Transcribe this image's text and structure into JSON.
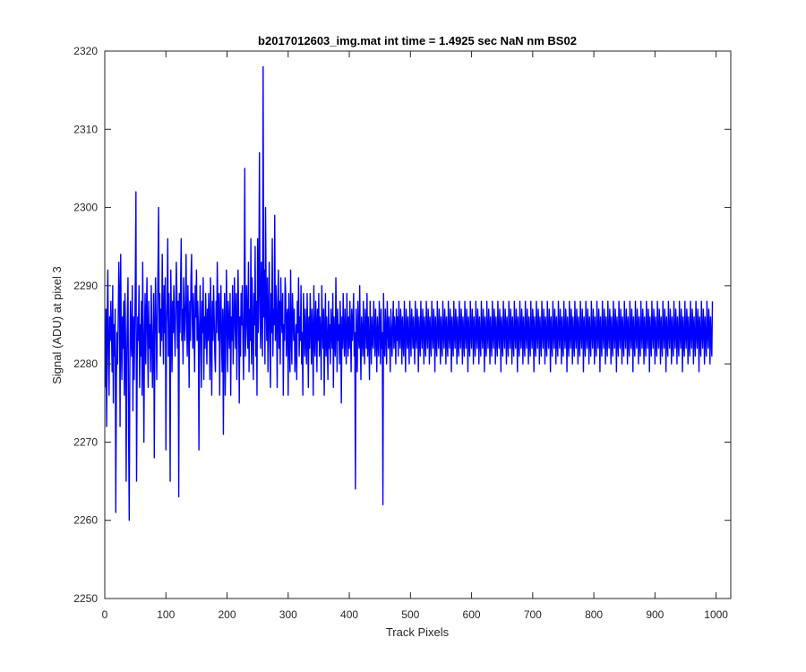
{
  "chart_data": {
    "type": "line",
    "title": "b2017012603_img.mat int time = 1.4925 sec  NaN nm BS02",
    "xlabel": "Track Pixels",
    "ylabel": "Signal (ADU) at pixel 3",
    "xlim": [
      0,
      1024
    ],
    "ylim": [
      2250,
      2320
    ],
    "xticks": [
      0,
      100,
      200,
      300,
      400,
      500,
      600,
      700,
      800,
      900,
      1000
    ],
    "yticks": [
      2250,
      2260,
      2270,
      2280,
      2290,
      2300,
      2310,
      2320
    ],
    "grid": false,
    "legend": "none",
    "series": [
      {
        "color": "#0000ff",
        "x_start": 1,
        "x_step": 1,
        "note_sampling": "every point shown, one value per track pixel 1..1024",
        "values": [
          2277,
          2287,
          2272,
          2285,
          2292,
          2281,
          2276,
          2286,
          2283,
          2288,
          2284,
          2279,
          2290,
          2275,
          2285,
          2281,
          2287,
          2261,
          2278,
          2284,
          2280,
          2286,
          2293,
          2289,
          2272,
          2294,
          2283,
          2278,
          2286,
          2282,
          2288,
          2276,
          2289,
          2284,
          2265,
          2280,
          2286,
          2291,
          2271,
          2260,
          2279,
          2288,
          2283,
          2281,
          2290,
          2274,
          2286,
          2278,
          2284,
          2291,
          2302,
          2265,
          2280,
          2286,
          2283,
          2290,
          2277,
          2285,
          2281,
          2288,
          2276,
          2293,
          2283,
          2270,
          2284,
          2289,
          2280,
          2286,
          2291,
          2283,
          2277,
          2288,
          2282,
          2285,
          2279,
          2290,
          2284,
          2277,
          2283,
          2289,
          2268,
          2284,
          2291,
          2285,
          2278,
          2286,
          2292,
          2300,
          2284,
          2289,
          2281,
          2287,
          2283,
          2294,
          2286,
          2280,
          2290,
          2284,
          2291,
          2269,
          2285,
          2288,
          2296,
          2281,
          2289,
          2283,
          2265,
          2292,
          2286,
          2279,
          2288,
          2284,
          2290,
          2285,
          2281,
          2287,
          2293,
          2289,
          2282,
          2288,
          2263,
          2289,
          2284,
          2290,
          2296,
          2283,
          2287,
          2280,
          2291,
          2286,
          2283,
          2288,
          2294,
          2285,
          2281,
          2290,
          2285,
          2277,
          2288,
          2283,
          2291,
          2294,
          2286,
          2282,
          2289,
          2284,
          2279,
          2290,
          2286,
          2292,
          2283,
          2288,
          2285,
          2269,
          2284,
          2290,
          2283,
          2277,
          2288,
          2284,
          2291,
          2278,
          2286,
          2282,
          2289,
          2285,
          2280,
          2287,
          2283,
          2289,
          2285,
          2278,
          2291,
          2284,
          2276,
          2288,
          2283,
          2290,
          2286,
          2281,
          2279,
          2288,
          2284,
          2293,
          2287,
          2283,
          2289,
          2276,
          2286,
          2290,
          2283,
          2279,
          2287,
          2271,
          2285,
          2289,
          2276,
          2283,
          2292,
          2285,
          2279,
          2288,
          2285,
          2282,
          2289,
          2276,
          2286,
          2283,
          2290,
          2280,
          2284,
          2291,
          2286,
          2282,
          2289,
          2278,
          2285,
          2292,
          2287,
          2275,
          2286,
          2281,
          2289,
          2285,
          2290,
          2283,
          2278,
          2287,
          2305,
          2281,
          2284,
          2290,
          2286,
          2282,
          2293,
          2279,
          2287,
          2283,
          2296,
          2280,
          2291,
          2284,
          2278,
          2289,
          2285,
          2295,
          2281,
          2288,
          2276,
          2296,
          2284,
          2290,
          2307,
          2286,
          2282,
          2293,
          2287,
          2281,
          2318,
          2286,
          2292,
          2280,
          2300,
          2288,
          2283,
          2291,
          2279,
          2286,
          2293,
          2283,
          2277,
          2289,
          2284,
          2296,
          2281,
          2287,
          2285,
          2299,
          2283,
          2290,
          2286,
          2277,
          2288,
          2292,
          2282,
          2288,
          2280,
          2291,
          2286,
          2284,
          2289,
          2276,
          2285,
          2283,
          2291,
          2289,
          2281,
          2286,
          2287,
          2276,
          2289,
          2283,
          2279,
          2292,
          2284,
          2280,
          2289,
          2286,
          2283,
          2287,
          2279,
          2282,
          2285,
          2278,
          2288,
          2284,
          2291,
          2281,
          2286,
          2283,
          2290,
          2280,
          2284,
          2276,
          2289,
          2285,
          2281,
          2287,
          2283,
          2280,
          2289,
          2284,
          2277,
          2286,
          2282,
          2289,
          2285,
          2280,
          2287,
          2284,
          2276,
          2290,
          2283,
          2281,
          2288,
          2285,
          2279,
          2287,
          2283,
          2289,
          2281,
          2286,
          2284,
          2278,
          2290,
          2285,
          2282,
          2287,
          2276,
          2284,
          2289,
          2281,
          2286,
          2283,
          2278,
          2288,
          2282,
          2285,
          2280,
          2287,
          2284,
          2282,
          2289,
          2277,
          2286,
          2283,
          2281,
          2291,
          2285,
          2279,
          2287,
          2283,
          2285,
          2280,
          2288,
          2284,
          2275,
          2286,
          2282,
          2289,
          2284,
          2281,
          2287,
          2283,
          2280,
          2289,
          2285,
          2281,
          2286,
          2282,
          2288,
          2284,
          2279,
          2287,
          2283,
          2285,
          2289,
          2281,
          2284,
          2264,
          2287,
          2283,
          2279,
          2288,
          2284,
          2282,
          2290,
          2283,
          2278,
          2286,
          2284,
          2281,
          2288,
          2283,
          2280,
          2287,
          2285,
          2282,
          2289,
          2281,
          2286,
          2283,
          2278,
          2288,
          2284,
          2280,
          2286,
          2283,
          2282,
          2288,
          2285,
          2281,
          2287,
          2284,
          2279,
          2286,
          2283,
          2281,
          2288,
          2285,
          2280,
          2287,
          2282,
          2284,
          2262,
          2289,
          2283,
          2281,
          2287,
          2284,
          2280,
          2288,
          2285,
          2282,
          2286,
          2283,
          2279,
          2287,
          2284,
          2281,
          2285,
          2288,
          2282,
          2286,
          2284,
          2280,
          2287,
          2283,
          2286,
          2281,
          2288,
          2284,
          2282,
          2287,
          2285,
          2280,
          2286,
          2283,
          2281,
          2288,
          2284,
          2279,
          2287,
          2285,
          2282,
          2286,
          2283,
          2280,
          2288,
          2284,
          2281,
          2287,
          2285,
          2282,
          2286,
          2283,
          2280,
          2288,
          2284,
          2282,
          2287,
          2285,
          2279,
          2286,
          2283,
          2281,
          2288,
          2284,
          2282,
          2287,
          2285,
          2280,
          2286,
          2283,
          2281,
          2288,
          2284,
          2282,
          2287,
          2285,
          2280,
          2286,
          2283,
          2281,
          2288,
          2284,
          2282,
          2287,
          2285,
          2279,
          2286,
          2283,
          2281,
          2288,
          2284,
          2282,
          2287,
          2285,
          2280,
          2286,
          2283,
          2281,
          2288,
          2284,
          2282,
          2287,
          2285,
          2280,
          2286,
          2283,
          2281,
          2288,
          2284,
          2282,
          2287,
          2285,
          2279,
          2286,
          2283,
          2281,
          2288,
          2284,
          2282,
          2287,
          2285,
          2280,
          2286,
          2283,
          2281,
          2288,
          2284,
          2282,
          2287,
          2285,
          2280,
          2286,
          2283,
          2281,
          2288,
          2284,
          2282,
          2287,
          2285,
          2279,
          2286,
          2283,
          2281,
          2288,
          2284,
          2282,
          2287,
          2285,
          2280,
          2286,
          2283,
          2281,
          2288,
          2284,
          2282,
          2287,
          2285,
          2280,
          2286,
          2283,
          2281,
          2288,
          2284,
          2282,
          2287,
          2285,
          2279,
          2286,
          2283,
          2281,
          2288,
          2284,
          2282,
          2287,
          2285,
          2280,
          2286,
          2283,
          2281,
          2288,
          2284,
          2282,
          2287,
          2285,
          2280,
          2286,
          2283,
          2281,
          2288,
          2284,
          2282,
          2287,
          2285,
          2279,
          2286,
          2283,
          2281,
          2288,
          2284,
          2282,
          2287,
          2285,
          2280,
          2286,
          2283,
          2281,
          2288,
          2284,
          2282,
          2287,
          2285,
          2280,
          2286,
          2283,
          2281,
          2288,
          2284,
          2282,
          2287,
          2285,
          2279,
          2286,
          2283,
          2281,
          2288,
          2284,
          2282,
          2287,
          2285,
          2280,
          2286,
          2283,
          2281,
          2288,
          2284,
          2282,
          2287,
          2285,
          2280,
          2286,
          2283,
          2281,
          2288,
          2284,
          2282,
          2287,
          2285,
          2279,
          2286,
          2283,
          2281,
          2288,
          2284,
          2282,
          2287,
          2285,
          2280,
          2286,
          2283,
          2281,
          2288,
          2284,
          2282,
          2287,
          2285,
          2280,
          2286,
          2283,
          2281,
          2288,
          2284,
          2282,
          2287,
          2285,
          2279,
          2286,
          2283,
          2281,
          2288,
          2284,
          2282,
          2287,
          2285,
          2280,
          2286,
          2283,
          2281,
          2288,
          2284,
          2282,
          2287,
          2285,
          2280,
          2286,
          2283,
          2281,
          2288,
          2284,
          2282,
          2287,
          2285,
          2279,
          2286,
          2283,
          2281,
          2288,
          2284,
          2282,
          2287,
          2285,
          2280,
          2286,
          2283,
          2281,
          2288,
          2284,
          2282,
          2287,
          2285,
          2280,
          2286,
          2283,
          2281,
          2288,
          2284,
          2282,
          2287,
          2285,
          2279,
          2286,
          2283,
          2281,
          2288,
          2284,
          2282,
          2287,
          2285,
          2280,
          2286,
          2283,
          2281,
          2288,
          2284,
          2282,
          2287,
          2285,
          2280,
          2286,
          2283,
          2281,
          2288,
          2284,
          2282,
          2287,
          2285,
          2279,
          2286,
          2283,
          2281,
          2288,
          2284,
          2282,
          2287,
          2285,
          2280,
          2286,
          2283,
          2281,
          2288,
          2284,
          2282,
          2287,
          2285,
          2280,
          2286,
          2283,
          2281,
          2288,
          2284,
          2282,
          2287,
          2285,
          2279,
          2286,
          2283,
          2281,
          2288,
          2284,
          2282,
          2287,
          2285,
          2280,
          2286,
          2283,
          2281,
          2288,
          2284,
          2282,
          2287,
          2285,
          2280,
          2286,
          2283,
          2281,
          2288,
          2284,
          2282,
          2287,
          2285,
          2279,
          2286,
          2283,
          2281,
          2288,
          2284,
          2282,
          2287,
          2285,
          2280,
          2286,
          2283,
          2281,
          2288,
          2284,
          2282,
          2287,
          2285,
          2280,
          2286,
          2283,
          2281,
          2288,
          2284,
          2282,
          2287,
          2285,
          2279,
          2286,
          2283,
          2281,
          2288,
          2284,
          2282,
          2287,
          2285,
          2280,
          2286,
          2283,
          2281,
          2288,
          2284,
          2282,
          2287,
          2285,
          2280,
          2286,
          2283,
          2281,
          2288,
          2284,
          2282,
          2287,
          2285,
          2279,
          2286,
          2283,
          2281,
          2288,
          2284,
          2282,
          2287,
          2285,
          2280,
          2286,
          2283,
          2281,
          2288,
          2284,
          2282,
          2287,
          2285,
          2280,
          2286,
          2283,
          2281,
          2288,
          2284,
          2282,
          2287,
          2285,
          2279,
          2286,
          2283,
          2281,
          2288,
          2284,
          2282,
          2287,
          2285,
          2280,
          2286,
          2283,
          2281,
          2288,
          2284,
          2282,
          2287,
          2285,
          2280,
          2286,
          2283,
          2281,
          2288,
          2284,
          2282,
          2287,
          2285,
          2279,
          2286,
          2283,
          2281,
          2288,
          2284,
          2282,
          2287,
          2285,
          2280,
          2286,
          2283,
          2281,
          2288,
          2284,
          2282,
          2287,
          2285,
          2280,
          2286,
          2283,
          2281,
          2288
        ]
      }
    ]
  }
}
